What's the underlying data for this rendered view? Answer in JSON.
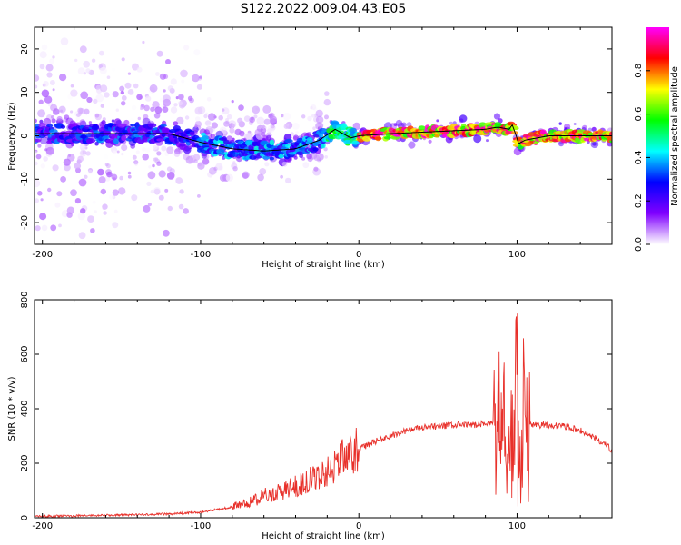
{
  "title": "S122.2022.009.04.43.E05",
  "chart_data": [
    {
      "type": "heatmap",
      "xlabel": "Height of straight line (km)",
      "ylabel": "Frequency (Hz)",
      "xlim": [
        -205,
        160
      ],
      "ylim": [
        -25,
        25
      ],
      "xticks": [
        -200,
        -100,
        0,
        100
      ],
      "yticks": [
        -20,
        -10,
        0,
        10,
        20
      ],
      "colorbar": {
        "label": "Normalized spectral amplitude",
        "range": [
          0,
          1
        ],
        "ticks": [
          0.0,
          0.2,
          0.4,
          0.6,
          0.8
        ],
        "colormap": [
          "#ffffff",
          "#8000ff",
          "#0000ff",
          "#00ffff",
          "#00ff00",
          "#ffff00",
          "#ff0000",
          "#ff00ff"
        ]
      },
      "ridge_line": {
        "x": [
          -205,
          -160,
          -120,
          -100,
          -80,
          -60,
          -40,
          -25,
          -15,
          -10,
          -5,
          0,
          20,
          50,
          80,
          88,
          95,
          98,
          100,
          105,
          120,
          140,
          160
        ],
        "y": [
          0.5,
          0.5,
          0.5,
          -1.5,
          -3,
          -3.5,
          -3,
          -1,
          1.5,
          0.5,
          -0.5,
          0,
          0.5,
          1,
          1.5,
          2,
          1.5,
          3,
          -2,
          -1,
          0,
          0,
          0
        ]
      },
      "notes": "Broad scattered purple noise below about -100 km; narrow bright ridge near 0 Hz above 0 km."
    },
    {
      "type": "line",
      "xlabel": "Height of straight line (km)",
      "ylabel": "SNR (10 * v/v)",
      "xlim": [
        -205,
        160
      ],
      "ylim": [
        0,
        800
      ],
      "xticks": [
        -200,
        -100,
        0,
        100
      ],
      "yticks": [
        0,
        200,
        400,
        600,
        800
      ],
      "color": "#e8302a",
      "series": [
        {
          "x": [
            -205,
            -180,
            -150,
            -120,
            -100,
            -90,
            -80,
            -70,
            -60,
            -50,
            -40,
            -30,
            -20,
            -10,
            0,
            10,
            20,
            30,
            40,
            50,
            60,
            70,
            80,
            85,
            88,
            90,
            92,
            95,
            98,
            100,
            102,
            104,
            106,
            110,
            120,
            130,
            140,
            150,
            160
          ],
          "y": [
            5,
            7,
            10,
            14,
            20,
            30,
            40,
            55,
            80,
            95,
            115,
            140,
            170,
            220,
            250,
            280,
            300,
            320,
            330,
            335,
            340,
            340,
            345,
            350,
            420,
            330,
            360,
            320,
            300,
            600,
            180,
            420,
            340,
            340,
            340,
            335,
            320,
            290,
            250
          ]
        }
      ]
    }
  ]
}
